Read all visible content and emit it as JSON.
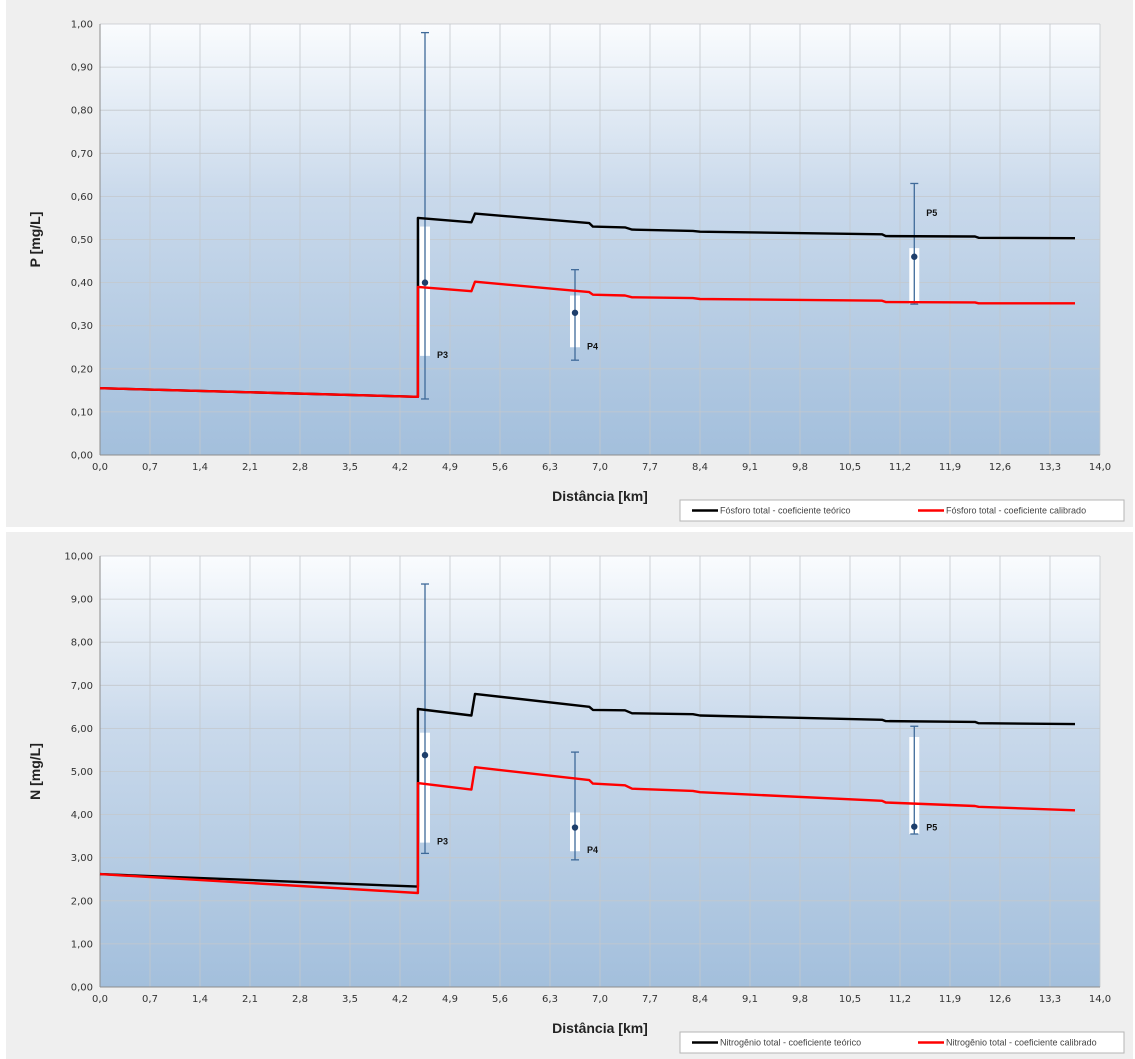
{
  "chart_data": [
    {
      "type": "line",
      "title": "",
      "xlabel": "Distância [km]",
      "ylabel": "P [mg/L]",
      "xlim": [
        0.0,
        14.0
      ],
      "ylim": [
        0.0,
        1.0
      ],
      "x_ticks": [
        "0,0",
        "0,7",
        "1,4",
        "2,1",
        "2,8",
        "3,5",
        "4,2",
        "4,9",
        "5,6",
        "6,3",
        "7,0",
        "7,7",
        "8,4",
        "9,1",
        "9,8",
        "10,5",
        "11,2",
        "11,9",
        "12,6",
        "13,3",
        "14,0"
      ],
      "y_ticks": [
        "0,00",
        "0,10",
        "0,20",
        "0,30",
        "0,40",
        "0,50",
        "0,60",
        "0,70",
        "0,80",
        "0,90",
        "1,00"
      ],
      "grid": true,
      "legend_position": "bottom-right",
      "series": [
        {
          "name": "Fósforo total - coeficiente teórico",
          "color": "#000000",
          "points": [
            [
              0.0,
              0.155
            ],
            [
              4.45,
              0.135
            ],
            [
              4.45,
              0.55
            ],
            [
              5.2,
              0.54
            ],
            [
              5.25,
              0.56
            ],
            [
              6.85,
              0.538
            ],
            [
              6.9,
              0.53
            ],
            [
              7.35,
              0.528
            ],
            [
              7.45,
              0.523
            ],
            [
              8.3,
              0.52
            ],
            [
              8.4,
              0.518
            ],
            [
              10.95,
              0.512
            ],
            [
              11.0,
              0.508
            ],
            [
              12.25,
              0.507
            ],
            [
              12.3,
              0.504
            ],
            [
              13.65,
              0.503
            ]
          ]
        },
        {
          "name": "Fósforo total - coeficiente calibrado",
          "color": "#ff0000",
          "points": [
            [
              0.0,
              0.155
            ],
            [
              4.45,
              0.135
            ],
            [
              4.45,
              0.39
            ],
            [
              5.2,
              0.38
            ],
            [
              5.25,
              0.402
            ],
            [
              6.85,
              0.378
            ],
            [
              6.9,
              0.372
            ],
            [
              7.35,
              0.37
            ],
            [
              7.45,
              0.366
            ],
            [
              8.3,
              0.364
            ],
            [
              8.4,
              0.362
            ],
            [
              10.95,
              0.358
            ],
            [
              11.0,
              0.355
            ],
            [
              12.25,
              0.354
            ],
            [
              12.3,
              0.352
            ],
            [
              13.65,
              0.352
            ]
          ]
        }
      ],
      "points": [
        {
          "label": "P3",
          "x": 4.55,
          "mean": 0.4,
          "min": 0.13,
          "max": 0.98,
          "q1": 0.23,
          "q3": 0.53
        },
        {
          "label": "P4",
          "x": 6.65,
          "mean": 0.33,
          "min": 0.22,
          "max": 0.43,
          "q1": 0.25,
          "q3": 0.37
        },
        {
          "label": "P5",
          "x": 11.4,
          "mean": 0.46,
          "min": 0.35,
          "max": 0.63,
          "q1": 0.35,
          "q3": 0.48
        }
      ]
    },
    {
      "type": "line",
      "title": "",
      "xlabel": "Distância [km]",
      "ylabel": "N [mg/L]",
      "xlim": [
        0.0,
        14.0
      ],
      "ylim": [
        0.0,
        10.0
      ],
      "x_ticks": [
        "0,0",
        "0,7",
        "1,4",
        "2,1",
        "2,8",
        "3,5",
        "4,2",
        "4,9",
        "5,6",
        "6,3",
        "7,0",
        "7,7",
        "8,4",
        "9,1",
        "9,8",
        "10,5",
        "11,2",
        "11,9",
        "12,6",
        "13,3",
        "14,0"
      ],
      "y_ticks": [
        "0,00",
        "1,00",
        "2,00",
        "3,00",
        "4,00",
        "5,00",
        "6,00",
        "7,00",
        "8,00",
        "9,00",
        "10,00"
      ],
      "grid": true,
      "legend_position": "bottom-right",
      "series": [
        {
          "name": "Nitrogênio total - coeficiente teórico",
          "color": "#000000",
          "points": [
            [
              0.0,
              2.62
            ],
            [
              4.45,
              2.33
            ],
            [
              4.45,
              6.45
            ],
            [
              5.2,
              6.3
            ],
            [
              5.25,
              6.8
            ],
            [
              6.85,
              6.5
            ],
            [
              6.9,
              6.43
            ],
            [
              7.35,
              6.42
            ],
            [
              7.45,
              6.35
            ],
            [
              8.3,
              6.33
            ],
            [
              8.4,
              6.3
            ],
            [
              10.95,
              6.2
            ],
            [
              11.0,
              6.17
            ],
            [
              12.25,
              6.15
            ],
            [
              12.3,
              6.12
            ],
            [
              13.65,
              6.1
            ]
          ]
        },
        {
          "name": "Nitrogênio total - coeficiente calibrado",
          "color": "#ff0000",
          "points": [
            [
              0.0,
              2.62
            ],
            [
              4.45,
              2.18
            ],
            [
              4.45,
              4.73
            ],
            [
              5.2,
              4.58
            ],
            [
              5.25,
              5.1
            ],
            [
              6.85,
              4.8
            ],
            [
              6.9,
              4.72
            ],
            [
              7.35,
              4.68
            ],
            [
              7.45,
              4.6
            ],
            [
              8.3,
              4.55
            ],
            [
              8.4,
              4.52
            ],
            [
              10.95,
              4.32
            ],
            [
              11.0,
              4.28
            ],
            [
              12.25,
              4.2
            ],
            [
              12.3,
              4.18
            ],
            [
              13.65,
              4.1
            ]
          ]
        }
      ],
      "points": [
        {
          "label": "P3",
          "x": 4.55,
          "mean": 5.38,
          "min": 3.1,
          "max": 9.35,
          "q1": 3.35,
          "q3": 5.9
        },
        {
          "label": "P4",
          "x": 6.65,
          "mean": 3.7,
          "min": 2.95,
          "max": 5.45,
          "q1": 3.15,
          "q3": 4.05
        },
        {
          "label": "P5",
          "x": 11.4,
          "mean": 3.72,
          "min": 3.55,
          "max": 6.05,
          "q1": 3.55,
          "q3": 5.8
        }
      ]
    }
  ]
}
